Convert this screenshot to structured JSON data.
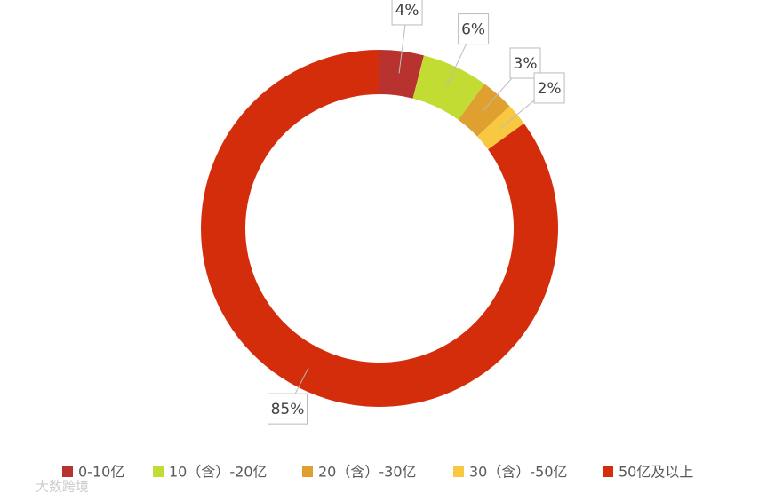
{
  "chart_data": {
    "type": "donut",
    "categories": [
      "0-10亿",
      "10（含）-20亿",
      "20（含）-30亿",
      "30（含）-50亿",
      "50亿及以上"
    ],
    "values": [
      4,
      6,
      3,
      2,
      85
    ],
    "value_labels": [
      "4%",
      "6%",
      "3%",
      "2%",
      "85%"
    ],
    "colors": [
      "#b83230",
      "#c2dc34",
      "#e0a030",
      "#f8c840",
      "#d42d0c"
    ],
    "legend": "bottom"
  },
  "watermark": "大数跨境"
}
